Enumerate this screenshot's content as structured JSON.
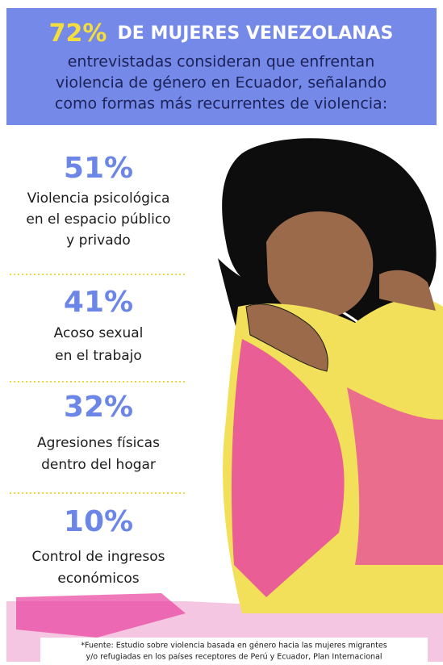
{
  "header": {
    "highlight": "72%",
    "title": "DE MUJERES VENEZOLANAS",
    "lines": [
      "entrevistadas consideran que enfrentan",
      "violencia de género en Ecuador, señalando",
      "como formas más recurrentes de violencia:"
    ]
  },
  "stats": [
    {
      "percent": "51%",
      "lines": [
        "Violencia psicológica",
        "en el espacio público",
        "y privado"
      ]
    },
    {
      "percent": "41%",
      "lines": [
        "Acoso sexual",
        "en el trabajo"
      ]
    },
    {
      "percent": "32%",
      "lines": [
        "Agresiones físicas",
        "dentro del hogar"
      ]
    },
    {
      "percent": "10%",
      "lines": [
        "Control de ingresos",
        "económicos"
      ]
    }
  ],
  "footer": {
    "lines": [
      "*Fuente: Estudio sobre violencia basada en género hacia las mujeres migrantes",
      "y/o refugiadas en los países receptores de Perú y Ecuador, Plan Internacional"
    ]
  }
}
